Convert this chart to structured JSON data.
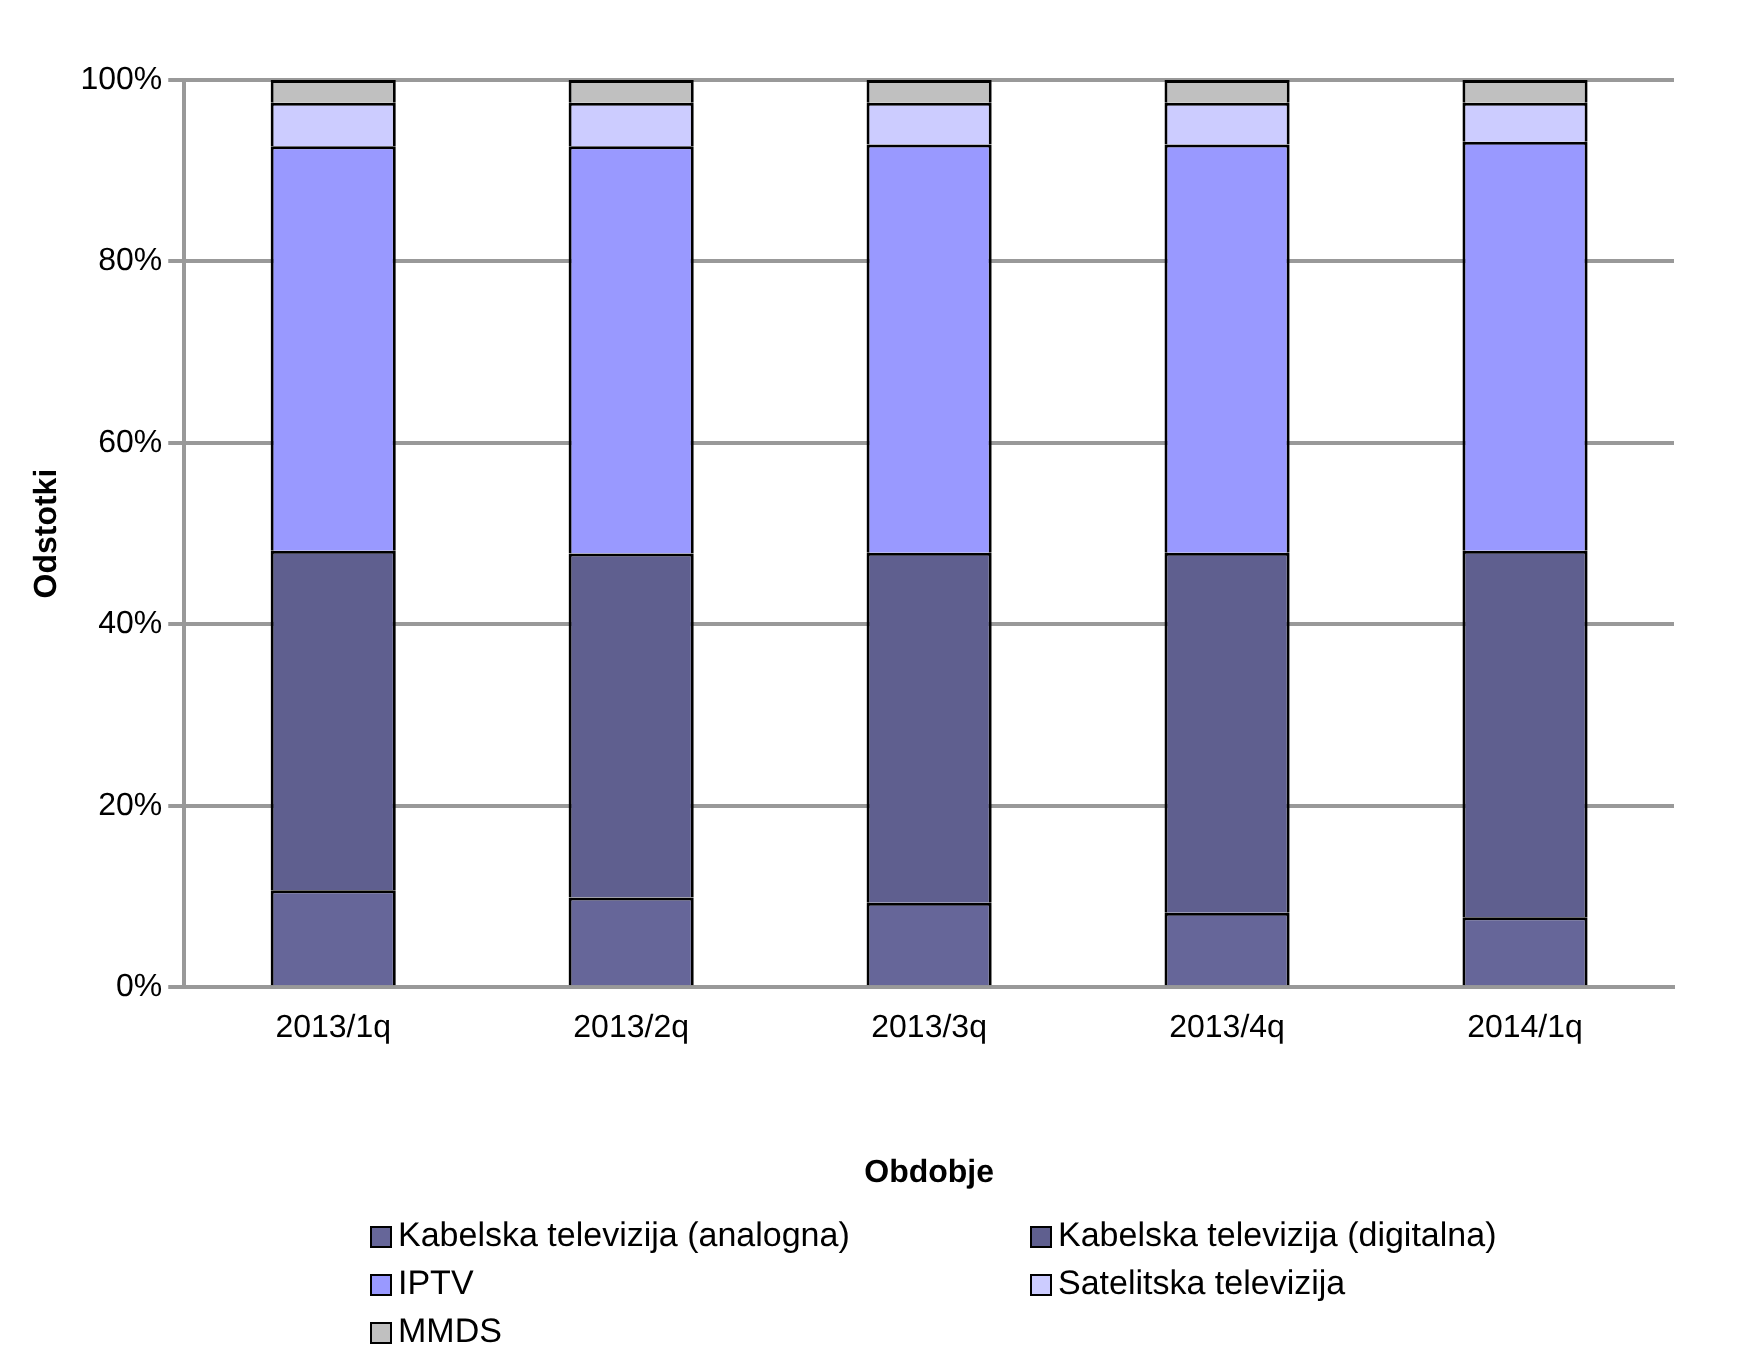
{
  "chart_data": {
    "type": "bar",
    "stacked": true,
    "xlabel": "Obdobje",
    "ylabel": "Odstotki",
    "categories": [
      "2013/1q",
      "2013/2q",
      "2013/3q",
      "2013/4q",
      "2014/1q"
    ],
    "series": [
      {
        "name": "Kabelska televizija (analogna)",
        "color": "#666699",
        "values": [
          10.7,
          9.9,
          9.3,
          8.2,
          7.7
        ]
      },
      {
        "name": "Kabelska televizija (digitalna)",
        "color": "#5f5f8f",
        "values": [
          37.4,
          37.9,
          38.6,
          39.7,
          40.4
        ]
      },
      {
        "name": "IPTV",
        "color": "#9999ff",
        "values": [
          44.6,
          44.9,
          45.0,
          45.0,
          45.1
        ]
      },
      {
        "name": "Satelitska televizija",
        "color": "#ccccff",
        "values": [
          4.8,
          4.8,
          4.6,
          4.6,
          4.3
        ]
      },
      {
        "name": "MMDS",
        "color": "#c0c0c0",
        "values": [
          2.5,
          2.5,
          2.5,
          2.5,
          2.5
        ]
      }
    ],
    "ylim": [
      0,
      100
    ],
    "yticks": [
      {
        "value": 0,
        "label": "0%"
      },
      {
        "value": 20,
        "label": "20%"
      },
      {
        "value": 40,
        "label": "40%"
      },
      {
        "value": 60,
        "label": "60%"
      },
      {
        "value": 80,
        "label": "80%"
      },
      {
        "value": 100,
        "label": "100%"
      }
    ],
    "grid": "y",
    "legend": "bottom"
  }
}
